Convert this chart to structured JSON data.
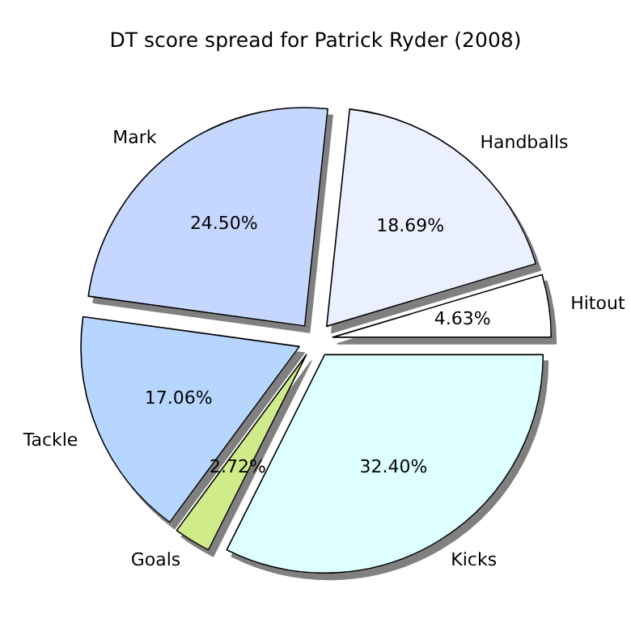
{
  "chart_data": {
    "type": "pie",
    "title": "DT score spread for Patrick Ryder (2008)",
    "categories": [
      "Hitout",
      "Handballs",
      "Mark",
      "Tackle",
      "Goals",
      "Kicks"
    ],
    "values": [
      4.63,
      18.69,
      24.5,
      17.06,
      2.72,
      32.4
    ],
    "value_labels": [
      "4.63%",
      "18.69%",
      "24.50%",
      "17.06%",
      "2.72%",
      "32.40%"
    ],
    "colors": [
      "#ffffff",
      "#eaf0ff",
      "#c6d7ff",
      "#b7d6ff",
      "#d0eb8a",
      "#ddffff"
    ]
  }
}
